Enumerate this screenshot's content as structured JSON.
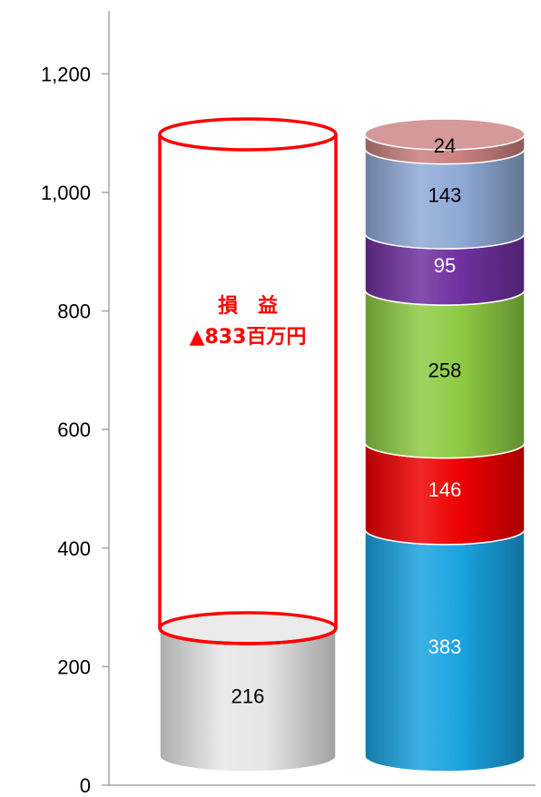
{
  "chart_data": {
    "type": "bar",
    "style": "stacked-cylinder",
    "ylim": [
      0,
      1200
    ],
    "yticks": [
      "0",
      "200",
      "400",
      "600",
      "800",
      "1,000",
      "1,200"
    ],
    "grid": false,
    "columns": [
      {
        "segments": [
          {
            "value": 216,
            "label": "216",
            "color": "#e6e6e6",
            "label_color": "#000000"
          }
        ],
        "outline": {
          "value": 833,
          "line": "損　益",
          "amount": "▲833百万円",
          "color": "#ff0000"
        }
      },
      {
        "segments": [
          {
            "value": 383,
            "label": "383",
            "color": "#1aa3e0",
            "label_color": "#ffffff"
          },
          {
            "value": 146,
            "label": "146",
            "color": "#ee0000",
            "label_color": "#ffffff"
          },
          {
            "value": 258,
            "label": "258",
            "color": "#8ecb44",
            "label_color": "#000000"
          },
          {
            "value": 95,
            "label": "95",
            "color": "#7030a0",
            "label_color": "#ffffff"
          },
          {
            "value": 143,
            "label": "143",
            "color": "#8fa9d6",
            "label_color": "#000000"
          },
          {
            "value": 24,
            "label": "24",
            "color": "#c9807e",
            "label_color": "#000000"
          }
        ]
      }
    ]
  }
}
